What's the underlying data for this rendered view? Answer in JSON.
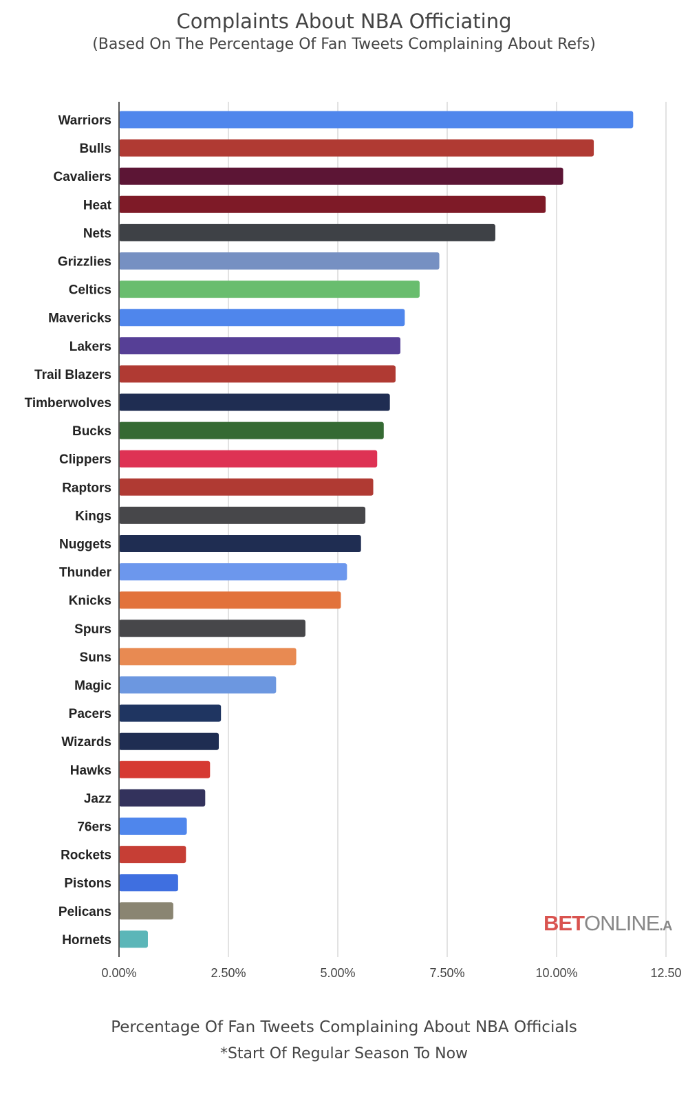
{
  "chart_data": {
    "type": "bar",
    "orientation": "horizontal",
    "title": "Complaints About NBA Officiating",
    "subtitle": "(Based On The Percentage Of Fan Tweets Complaining About Refs)",
    "xlabel": "Percentage Of Fan Tweets Complaining About NBA Officials",
    "note": "*Start Of Regular Season To Now",
    "xlim": [
      0,
      12.5
    ],
    "xticks": [
      0,
      2.5,
      5,
      7.5,
      10,
      12.5
    ],
    "xtick_labels": [
      "0.00%",
      "2.50%",
      "5.00%",
      "7.50%",
      "10.00%",
      "12.50"
    ],
    "grid": "vertical",
    "categories": [
      "Warriors",
      "Bulls",
      "Cavaliers",
      "Heat",
      "Nets",
      "Grizzlies",
      "Celtics",
      "Mavericks",
      "Lakers",
      "Trail Blazers",
      "Timberwolves",
      "Bucks",
      "Clippers",
      "Raptors",
      "Kings",
      "Nuggets",
      "Thunder",
      "Knicks",
      "Spurs",
      "Suns",
      "Magic",
      "Pacers",
      "Wizards",
      "Hawks",
      "Jazz",
      "76ers",
      "Rockets",
      "Pistons",
      "Pelicans",
      "Hornets"
    ],
    "values": [
      11.75,
      10.85,
      10.15,
      9.75,
      8.6,
      7.32,
      6.87,
      6.53,
      6.43,
      6.32,
      6.19,
      6.05,
      5.9,
      5.81,
      5.63,
      5.53,
      5.21,
      5.07,
      4.26,
      4.05,
      3.59,
      2.33,
      2.28,
      2.08,
      1.97,
      1.55,
      1.53,
      1.35,
      1.24,
      0.66
    ],
    "colors": [
      "#4f86ec",
      "#b03a33",
      "#5c1535",
      "#7e1a27",
      "#3e4146",
      "#7690c2",
      "#69bd6e",
      "#4f86ec",
      "#563f96",
      "#b03a33",
      "#1f2d52",
      "#356a33",
      "#de3254",
      "#b03a33",
      "#47474a",
      "#1f2d52",
      "#6c97ed",
      "#e2723b",
      "#47474a",
      "#e88a52",
      "#6c97e0",
      "#1f3561",
      "#1f2d52",
      "#d63a32",
      "#33325c",
      "#4f86ec",
      "#c63e35",
      "#3f6fe0",
      "#8a8572",
      "#5bb6b8"
    ]
  },
  "logo": {
    "part1": "BET",
    "part2": "ONLINE",
    "part3": ".A"
  }
}
